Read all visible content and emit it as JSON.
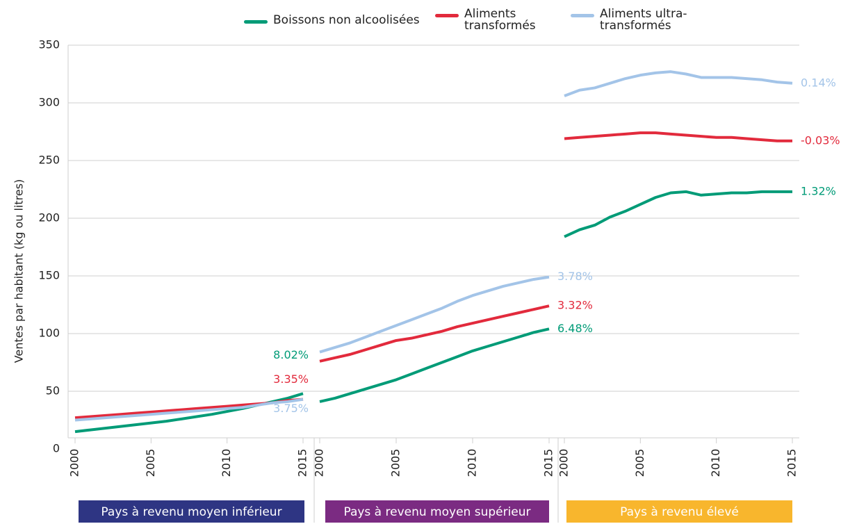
{
  "chart_data": {
    "type": "line",
    "ylabel": "Ventes par habitant (kg ou litres)",
    "ylim": [
      0,
      350
    ],
    "yticks": [
      0,
      50,
      100,
      150,
      200,
      250,
      300,
      350
    ],
    "grid": true,
    "xticks": [
      2000,
      2005,
      2010,
      2015
    ],
    "series": [
      {
        "name": "Boissons non alcoolisées",
        "color": "#009b77"
      },
      {
        "name": "Aliments transformés",
        "color": "#e22a3c"
      },
      {
        "name": "Aliments ultra-transformés",
        "color": "#a3c4e8"
      }
    ],
    "panels": [
      {
        "label": "Pays à revenu moyen inférieur",
        "color": "#2e3583",
        "x": [
          2000,
          2001,
          2002,
          2003,
          2004,
          2005,
          2006,
          2007,
          2008,
          2009,
          2010,
          2011,
          2012,
          2013,
          2014,
          2015
        ],
        "series": [
          {
            "values": [
              15,
              16.5,
              18,
              19.5,
              21,
              22.5,
              24,
              26,
              28,
              30,
              32.5,
              35,
              38,
              41,
              44,
              48
            ],
            "label": "8.02%"
          },
          {
            "values": [
              27,
              28,
              29,
              30,
              31,
              32,
              33,
              34,
              35,
              36,
              37,
              38,
              39,
              40,
              42,
              43
            ],
            "label": "3.35%"
          },
          {
            "values": [
              25,
              26,
              27,
              28,
              29,
              30,
              31,
              32,
              33,
              34,
              35,
              36,
              38,
              40,
              41,
              43
            ],
            "label": "3.75%"
          }
        ]
      },
      {
        "label": "Pays à revenu moyen supérieur",
        "color": "#7b2b82",
        "x": [
          2000,
          2001,
          2002,
          2003,
          2004,
          2005,
          2006,
          2007,
          2008,
          2009,
          2010,
          2011,
          2012,
          2013,
          2014,
          2015
        ],
        "series": [
          {
            "values": [
              41,
              44,
              48,
              52,
              56,
              60,
              65,
              70,
              75,
              80,
              85,
              89,
              93,
              97,
              101,
              104
            ],
            "label": "6.48%"
          },
          {
            "values": [
              76,
              79,
              82,
              86,
              90,
              94,
              96,
              99,
              102,
              106,
              109,
              112,
              115,
              118,
              121,
              124
            ],
            "label": "3.32%"
          },
          {
            "values": [
              84,
              88,
              92,
              97,
              102,
              107,
              112,
              117,
              122,
              128,
              133,
              137,
              141,
              144,
              147,
              149
            ],
            "label": "3.78%"
          }
        ]
      },
      {
        "label": "Pays à revenu élevé",
        "color": "#f8b62d",
        "x": [
          2000,
          2001,
          2002,
          2003,
          2004,
          2005,
          2006,
          2007,
          2008,
          2009,
          2010,
          2011,
          2012,
          2013,
          2014,
          2015
        ],
        "series": [
          {
            "values": [
              184,
              190,
              194,
              201,
              206,
              212,
              218,
              222,
              223,
              220,
              221,
              222,
              222,
              223,
              223,
              223
            ],
            "label": "1.32%"
          },
          {
            "values": [
              269,
              270,
              271,
              272,
              273,
              274,
              274,
              273,
              272,
              271,
              270,
              270,
              269,
              268,
              267,
              267
            ],
            "label": "-0.03%"
          },
          {
            "values": [
              306,
              311,
              313,
              317,
              321,
              324,
              326,
              327,
              325,
              322,
              322,
              322,
              321,
              320,
              318,
              317
            ],
            "label": "0.14%"
          }
        ]
      }
    ]
  }
}
